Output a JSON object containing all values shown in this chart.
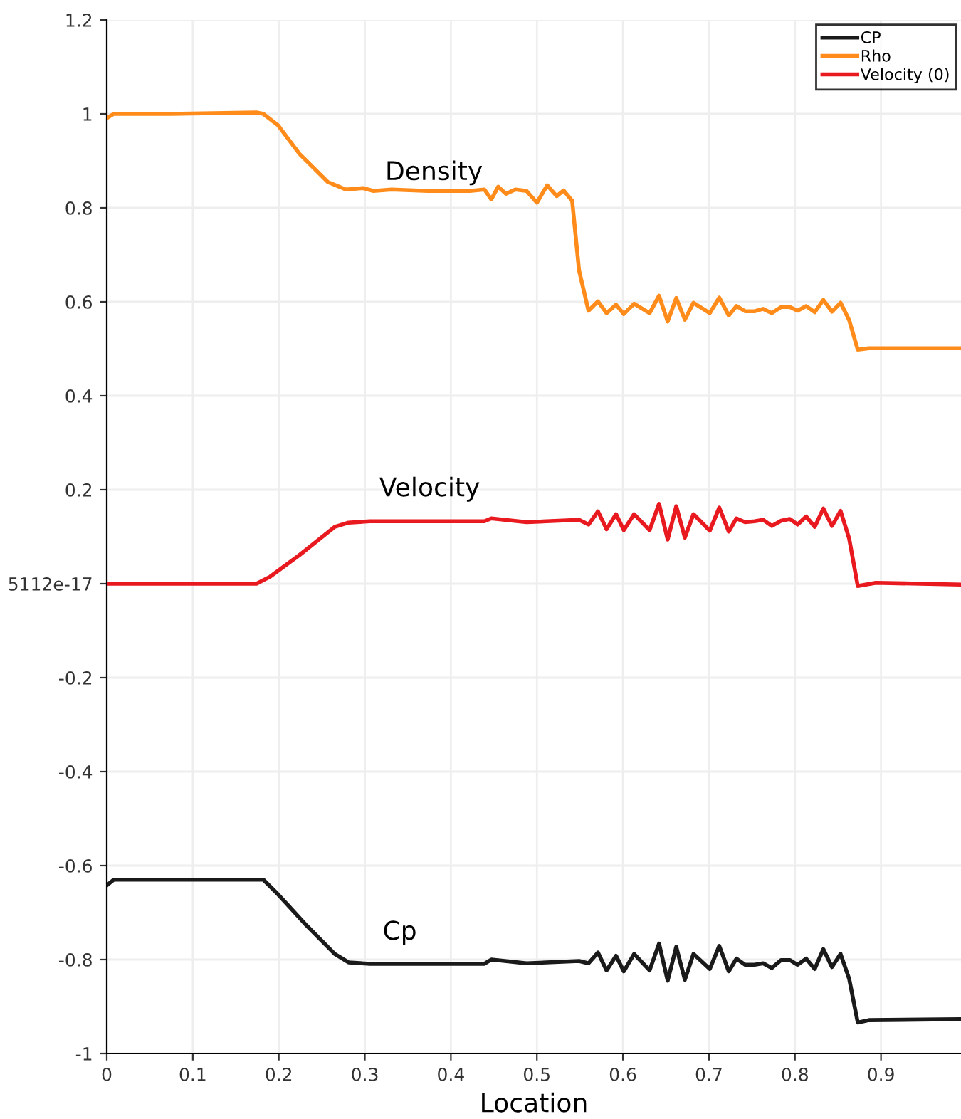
{
  "chart_data": {
    "type": "line",
    "xlabel": "Location",
    "xlim": [
      0,
      0.993
    ],
    "xticks": [
      0,
      0.1,
      0.2,
      0.3,
      0.4,
      0.5,
      0.6,
      0.7,
      0.8,
      0.9
    ],
    "ylim": [
      -1,
      1.2
    ],
    "yticks": [
      -1,
      -0.8,
      -0.6,
      -0.4,
      -0.2,
      {
        "value": 0,
        "label": "5112e-17"
      },
      0.2,
      0.4,
      0.6,
      0.8,
      1,
      1.2
    ],
    "grid": true,
    "legend": "top right",
    "marker": "none",
    "line_style": "solid",
    "annotations": [
      "Density",
      "Velocity",
      "Cp"
    ],
    "series": [
      {
        "name": "CP",
        "color": "#1a1a1a",
        "x": [
          0,
          0.008,
          0.174,
          0.182,
          0.199,
          0.232,
          0.265,
          0.281,
          0.306,
          0.422,
          0.439,
          0.447,
          0.488,
          0.549,
          0.56,
          0.571,
          0.581,
          0.592,
          0.601,
          0.613,
          0.631,
          0.642,
          0.652,
          0.662,
          0.672,
          0.682,
          0.701,
          0.712,
          0.723,
          0.732,
          0.742,
          0.753,
          0.763,
          0.773,
          0.784,
          0.794,
          0.803,
          0.813,
          0.823,
          0.833,
          0.843,
          0.853,
          0.863,
          0.873,
          0.886,
          0.993
        ],
        "values": [
          -0.642,
          -0.63,
          -0.63,
          -0.63,
          -0.661,
          -0.727,
          -0.788,
          -0.806,
          -0.809,
          -0.809,
          -0.809,
          -0.8,
          -0.808,
          -0.803,
          -0.808,
          -0.785,
          -0.823,
          -0.792,
          -0.825,
          -0.788,
          -0.823,
          -0.766,
          -0.845,
          -0.773,
          -0.843,
          -0.788,
          -0.82,
          -0.771,
          -0.825,
          -0.798,
          -0.811,
          -0.811,
          -0.808,
          -0.818,
          -0.801,
          -0.801,
          -0.811,
          -0.798,
          -0.82,
          -0.778,
          -0.816,
          -0.788,
          -0.841,
          -0.934,
          -0.929,
          -0.927
        ]
      },
      {
        "name": "Rho",
        "color": "#ff8c1a",
        "x": [
          0,
          0.008,
          0.075,
          0.174,
          0.182,
          0.199,
          0.224,
          0.257,
          0.278,
          0.298,
          0.31,
          0.331,
          0.373,
          0.422,
          0.439,
          0.447,
          0.455,
          0.464,
          0.475,
          0.488,
          0.5,
          0.512,
          0.523,
          0.531,
          0.541,
          0.549,
          0.56,
          0.571,
          0.581,
          0.592,
          0.601,
          0.613,
          0.631,
          0.642,
          0.652,
          0.662,
          0.672,
          0.682,
          0.701,
          0.712,
          0.723,
          0.732,
          0.742,
          0.753,
          0.763,
          0.773,
          0.784,
          0.794,
          0.803,
          0.813,
          0.823,
          0.833,
          0.843,
          0.853,
          0.863,
          0.873,
          0.886,
          0.993
        ],
        "values": [
          0.991,
          1.0,
          1.0,
          1.003,
          1.0,
          0.976,
          0.915,
          0.855,
          0.839,
          0.842,
          0.836,
          0.839,
          0.836,
          0.836,
          0.839,
          0.818,
          0.845,
          0.83,
          0.839,
          0.836,
          0.811,
          0.848,
          0.825,
          0.837,
          0.815,
          0.667,
          0.581,
          0.601,
          0.576,
          0.594,
          0.574,
          0.596,
          0.576,
          0.613,
          0.558,
          0.608,
          0.562,
          0.598,
          0.576,
          0.609,
          0.571,
          0.591,
          0.58,
          0.58,
          0.585,
          0.576,
          0.589,
          0.589,
          0.581,
          0.591,
          0.578,
          0.604,
          0.579,
          0.598,
          0.561,
          0.498,
          0.501,
          0.501
        ]
      },
      {
        "name": "Velocity (0)",
        "color": "#e8191f",
        "x": [
          0,
          0.174,
          0.19,
          0.224,
          0.265,
          0.281,
          0.306,
          0.373,
          0.439,
          0.447,
          0.488,
          0.549,
          0.56,
          0.571,
          0.581,
          0.592,
          0.601,
          0.613,
          0.631,
          0.642,
          0.652,
          0.662,
          0.672,
          0.682,
          0.701,
          0.712,
          0.723,
          0.732,
          0.742,
          0.753,
          0.763,
          0.773,
          0.784,
          0.794,
          0.803,
          0.813,
          0.823,
          0.833,
          0.843,
          0.853,
          0.863,
          0.873,
          0.894,
          0.993
        ],
        "values": [
          0,
          0,
          0.015,
          0.061,
          0.121,
          0.13,
          0.133,
          0.133,
          0.133,
          0.139,
          0.131,
          0.136,
          0.126,
          0.154,
          0.116,
          0.148,
          0.114,
          0.148,
          0.114,
          0.17,
          0.094,
          0.165,
          0.098,
          0.148,
          0.113,
          0.162,
          0.111,
          0.139,
          0.131,
          0.133,
          0.136,
          0.123,
          0.134,
          0.138,
          0.126,
          0.143,
          0.121,
          0.16,
          0.123,
          0.155,
          0.096,
          -0.005,
          0.002,
          -0.002
        ]
      }
    ]
  }
}
